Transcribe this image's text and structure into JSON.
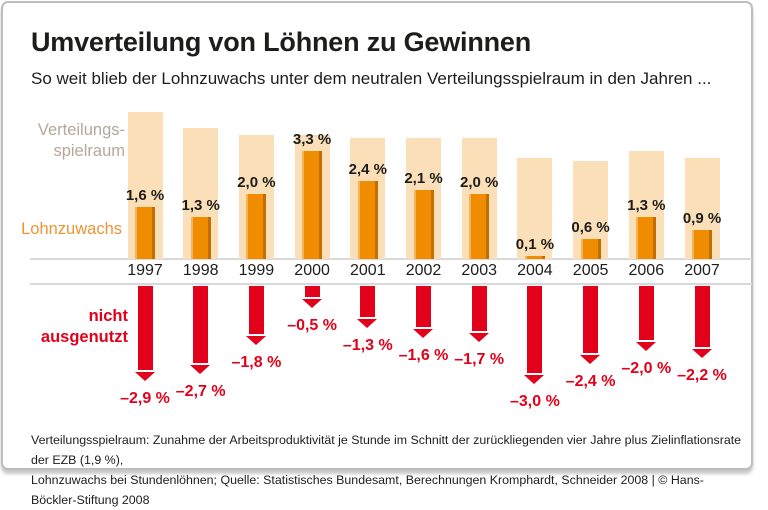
{
  "header": {
    "title": "Umverteilung von Löhnen zu Gewinnen",
    "subtitle": "So weit blieb der Lohnzuwachs unter dem neutralen Verteilungsspielraum in den Jahren ..."
  },
  "chart_data": {
    "type": "bar",
    "categories": [
      "1997",
      "1998",
      "1999",
      "2000",
      "2001",
      "2002",
      "2003",
      "2004",
      "2005",
      "2006",
      "2007"
    ],
    "series": [
      {
        "name": "Verteilungsspielraum",
        "values": [
          4.5,
          4.0,
          3.8,
          3.8,
          3.7,
          3.7,
          3.7,
          3.1,
          3.0,
          3.3,
          3.1
        ],
        "color": "#fbdfb8"
      },
      {
        "name": "Lohnzuwachs",
        "values": [
          1.6,
          1.3,
          2.0,
          3.3,
          2.4,
          2.1,
          2.0,
          0.1,
          0.6,
          1.3,
          0.9
        ],
        "labels": [
          "1,6 %",
          "1,3 %",
          "2,0 %",
          "3,3 %",
          "2,4 %",
          "2,1 %",
          "2,0 %",
          "0,1 %",
          "0,6 %",
          "1,3 %",
          "0,9 %"
        ],
        "color": "#f08c00"
      },
      {
        "name": "nicht ausgenutzt",
        "values": [
          -2.9,
          -2.7,
          -1.8,
          -0.5,
          -1.3,
          -1.6,
          -1.7,
          -3.0,
          -2.4,
          -2.0,
          -2.2
        ],
        "labels": [
          "–2,9 %",
          "–2,7 %",
          "–1,8 %",
          "–0,5 %",
          "–1,3 %",
          "–1,6 %",
          "–1,7 %",
          "–3,0 %",
          "–2,4 %",
          "–2,0 %",
          "–2,2 %"
        ],
        "color": "#e2001a"
      }
    ],
    "legend": {
      "verteilungsspielraum_line1": "Verteilungs-",
      "verteilungsspielraum_line2": "spielraum",
      "lohnzuwachs": "Lohnzuwachs",
      "nicht_line1": "nicht",
      "nicht_line2": "ausgenutzt"
    },
    "title": "Umverteilung von Löhnen zu Gewinnen",
    "xlabel": "",
    "ylabel": "",
    "ylim": [
      -3.0,
      4.5
    ],
    "grid": false,
    "legend_position": "left",
    "unit": "%"
  },
  "footer": {
    "line1": "Verteilungsspielraum: Zunahme der Arbeitsproduktivität je Stunde im Schnitt der zurückliegenden vier Jahre plus Zielinflationsrate der EZB (1,9 %),",
    "line2": "Lohnzuwachs bei Stundenlöhnen; Quelle: Statistisches Bundesamt, Berechnungen Kromphardt, Schneider 2008 | © Hans-Böckler-Stiftung 2008"
  },
  "colors": {
    "verteilungsspielraum": "#fbdfb8",
    "lohnzuwachs": "#f08c00",
    "nicht_ausgenutzt": "#e2001a",
    "legend_muted": "#b4a89b",
    "axis_line": "#d9d9d9",
    "text": "#1d1d1b"
  }
}
